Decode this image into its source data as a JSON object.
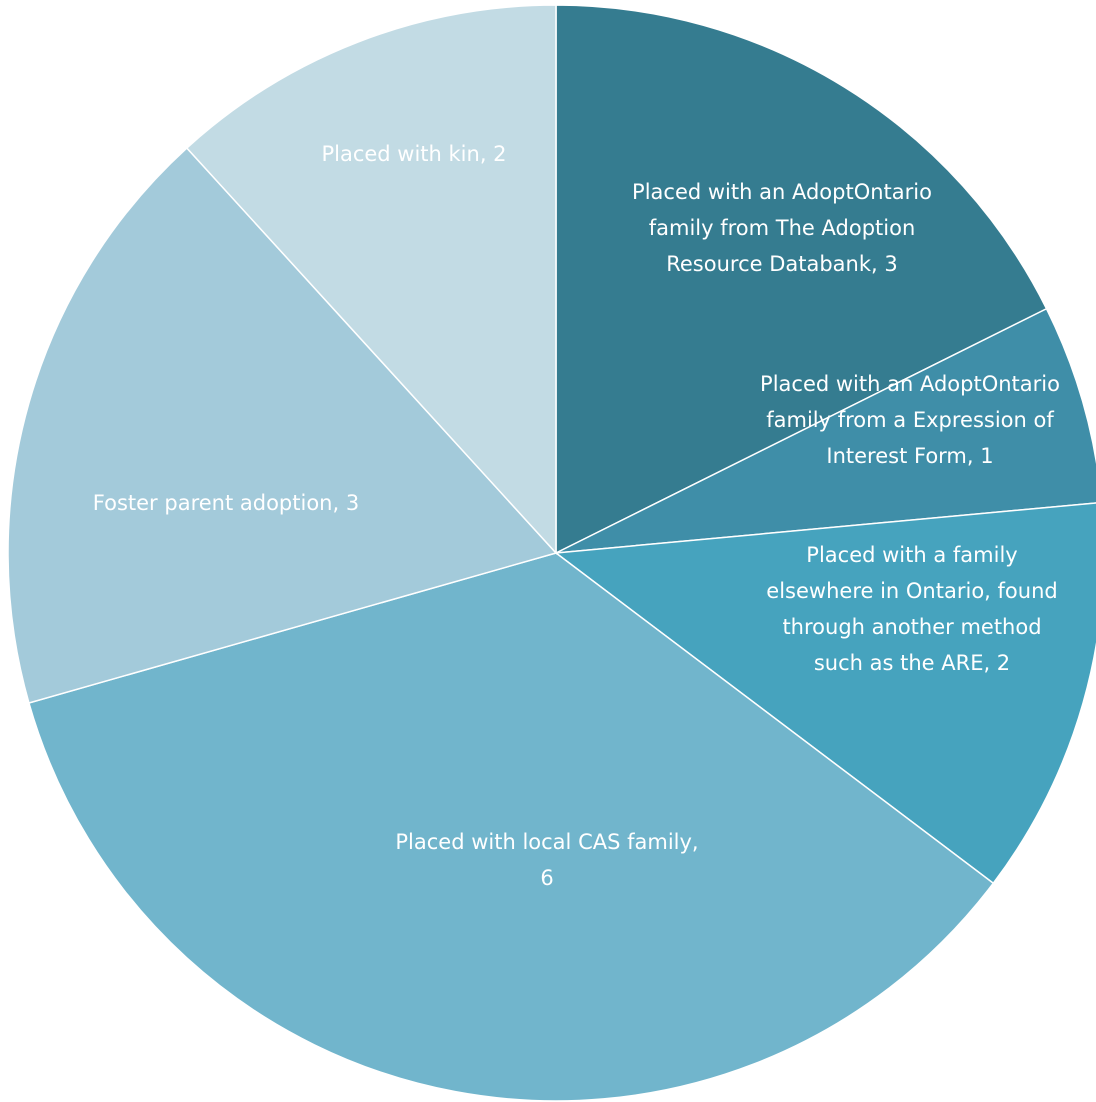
{
  "chart_data": {
    "type": "pie",
    "title": "",
    "start_angle_deg": 0,
    "direction": "clockwise",
    "slices": [
      {
        "key": "adoptontario-databank",
        "label_lines": [
          "Placed with an AdoptOntario",
          "family from The Adoption",
          "Resource Databank, 3"
        ],
        "category": "Placed with an AdoptOntario family from The Adoption Resource Databank",
        "value": 3,
        "color": "#357C90"
      },
      {
        "key": "adoptontario-eoi",
        "label_lines": [
          "Placed with an AdoptOntario",
          "family from a Expression of",
          "Interest Form, 1"
        ],
        "category": "Placed with an AdoptOntario family from a Expression of Interest Form",
        "value": 1,
        "color": "#3F8EA8"
      },
      {
        "key": "family-elsewhere-ontario",
        "label_lines": [
          "Placed with a family",
          "elsewhere in Ontario, found",
          "through another method",
          "such as the ARE, 2"
        ],
        "category": "Placed with a family elsewhere in Ontario, found through another method such as the ARE",
        "value": 2,
        "color": "#46A3BE"
      },
      {
        "key": "local-cas-family",
        "label_lines": [
          "Placed with local CAS family,",
          "6"
        ],
        "category": "Placed with local CAS family",
        "value": 6,
        "color": "#71B5CC"
      },
      {
        "key": "foster-parent-adoption",
        "label_lines": [
          "Foster parent adoption, 3"
        ],
        "category": "Foster parent adoption",
        "value": 3,
        "color": "#A3CADA"
      },
      {
        "key": "placed-with-kin",
        "label_lines": [
          "Placed with kin, 2"
        ],
        "category": "Placed with kin",
        "value": 2,
        "color": "#C2DBE4"
      }
    ]
  }
}
